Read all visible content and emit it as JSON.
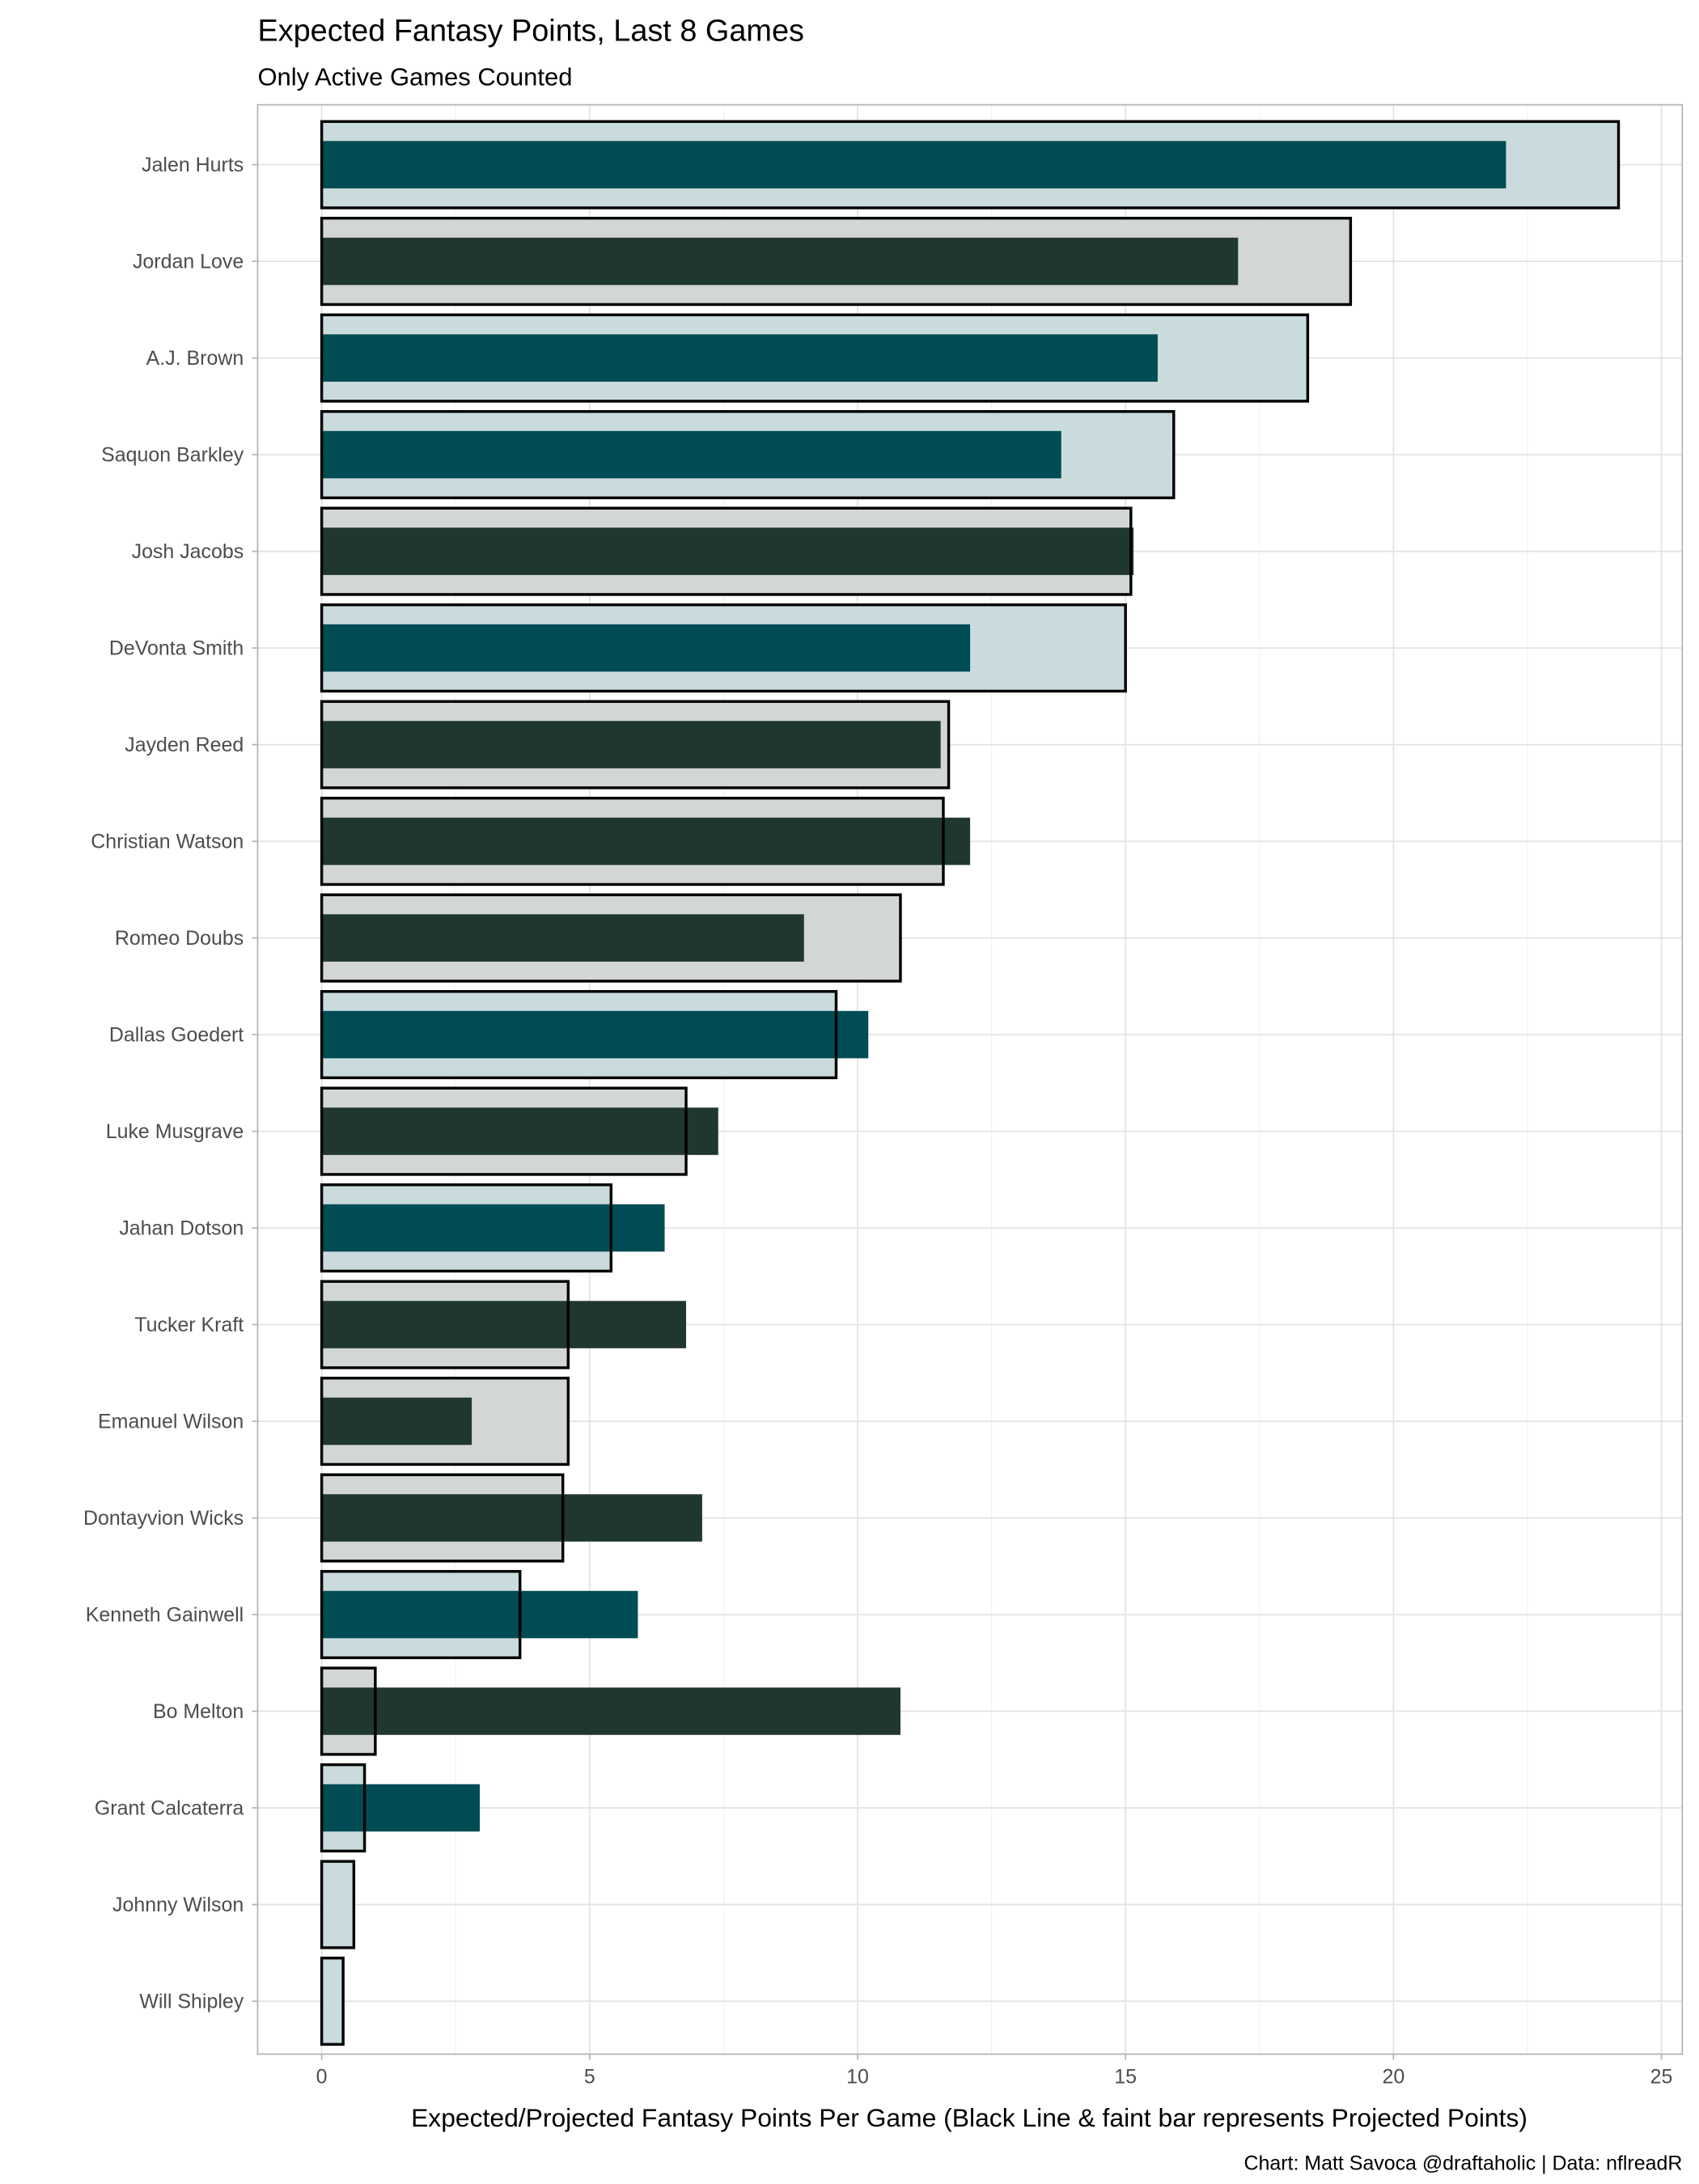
{
  "chart_data": {
    "type": "bar",
    "orientation": "horizontal",
    "title": "Expected Fantasy Points, Last 8 Games",
    "subtitle": "Only Active Games Counted",
    "xlabel": "Expected/Projected Fantasy Points Per Game (Black Line & faint bar represents Projected Points)",
    "caption": "Chart: Matt Savoca @draftaholic | Data: nflreadR",
    "xlim": [
      -1.2,
      25.4
    ],
    "xticks": [
      "0",
      "5",
      "10",
      "15",
      "20",
      "25"
    ],
    "grid": true,
    "legend": "none",
    "team_colors": {
      "eagles": {
        "solid": "#004c54",
        "faint": "#cadbde"
      },
      "packers": {
        "solid": "#203731",
        "faint": "#d2d6d5"
      }
    },
    "categories": [
      "Jalen Hurts",
      "Jordan Love",
      "A.J. Brown",
      "Saquon Barkley",
      "Josh Jacobs",
      "DeVonta Smith",
      "Jayden Reed",
      "Christian Watson",
      "Romeo Doubs",
      "Dallas Goedert",
      "Luke Musgrave",
      "Jahan Dotson",
      "Tucker Kraft",
      "Emanuel Wilson",
      "Dontayvion Wicks",
      "Kenneth Gainwell",
      "Bo Melton",
      "Grant Calcaterra",
      "Johnny Wilson",
      "Will Shipley"
    ],
    "team": [
      "eagles",
      "packers",
      "eagles",
      "eagles",
      "packers",
      "eagles",
      "packers",
      "packers",
      "packers",
      "eagles",
      "packers",
      "eagles",
      "packers",
      "packers",
      "packers",
      "eagles",
      "packers",
      "eagles",
      "eagles",
      "eagles"
    ],
    "series": [
      {
        "name": "Projected",
        "values": [
          24.2,
          19.2,
          18.4,
          15.9,
          15.1,
          15.0,
          11.7,
          11.6,
          10.8,
          9.6,
          6.8,
          5.4,
          4.6,
          4.6,
          4.5,
          3.7,
          1.0,
          0.8,
          0.6,
          0.4
        ]
      },
      {
        "name": "Expected",
        "values": [
          22.1,
          17.1,
          15.6,
          13.8,
          15.15,
          12.1,
          11.55,
          12.1,
          9.0,
          10.2,
          7.4,
          6.4,
          6.8,
          2.8,
          7.1,
          5.9,
          10.8,
          2.95,
          0,
          0
        ]
      }
    ]
  }
}
